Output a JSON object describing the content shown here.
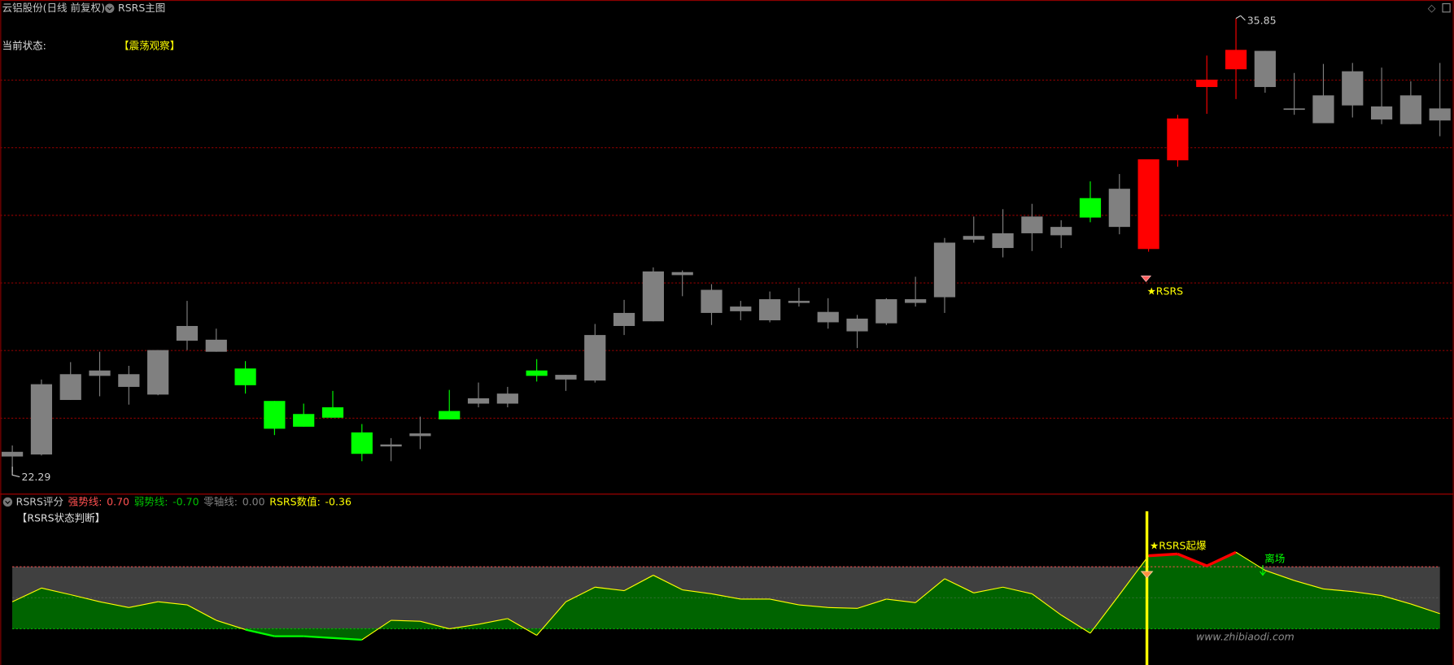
{
  "chart_data": [
    {
      "type": "candlestick",
      "title": "云铝股份(日线 前复权)",
      "subtitle": "RSRS主图",
      "status_label": "当前状态:",
      "status": "【震荡观察】",
      "annotations": [
        "★RSRS"
      ],
      "open": [
        22.76,
        22.82,
        24.45,
        25.17,
        24.84,
        24.61,
        26.22,
        25.89,
        25.39,
        24.42,
        24.03,
        24.23,
        23.48,
        23.06,
        23.37,
        24.12,
        24.34,
        24.34,
        25.33,
        25.06,
        25.03,
        26.66,
        26.8,
        28.18,
        27.05,
        27.1,
        26.83,
        27.35,
        26.77,
        26.5,
        26.74,
        27.35,
        27.52,
        29.24,
        28.99,
        29.43,
        29.37,
        30.48,
        29.62,
        28.96,
        31.61,
        33.8,
        34.33,
        33.8,
        33.14,
        32.72,
        33.25,
        32.83,
        32.69,
        32.8
      ],
      "high": [
        23.09,
        25.06,
        25.58,
        25.89,
        25.47,
        25.94,
        27.41,
        26.58,
        25.61,
        24.42,
        24.34,
        24.72,
        23.73,
        23.31,
        23.95,
        24.75,
        24.97,
        24.84,
        25.67,
        25.2,
        26.72,
        27.44,
        28.41,
        28.32,
        27.91,
        27.41,
        27.69,
        27.8,
        27.49,
        26.99,
        27.49,
        28.13,
        29.29,
        29.93,
        30.15,
        30.31,
        29.82,
        30.98,
        31.2,
        31.64,
        32.97,
        34.74,
        35.85,
        34.88,
        34.22,
        34.49,
        34.52,
        34.38,
        33.97,
        34.52
      ],
      "low": [
        22.29,
        22.79,
        24.45,
        24.56,
        24.31,
        24.59,
        25.94,
        25.89,
        24.64,
        23.4,
        23.65,
        23.92,
        22.62,
        22.62,
        22.98,
        23.87,
        24.23,
        24.23,
        25.0,
        24.72,
        24.97,
        26.39,
        26.8,
        27.55,
        26.69,
        26.83,
        26.77,
        27.24,
        26.58,
        26.0,
        26.69,
        27.24,
        27.05,
        29.15,
        28.71,
        28.9,
        28.99,
        29.76,
        29.4,
        28.88,
        31.42,
        33.0,
        33.44,
        33.63,
        32.97,
        32.72,
        32.89,
        32.69,
        32.69,
        32.33
      ],
      "close": [
        22.9,
        24.92,
        25.22,
        25.33,
        25.22,
        25.94,
        26.66,
        26.25,
        24.89,
        23.59,
        23.65,
        23.92,
        22.84,
        23.12,
        23.45,
        23.87,
        24.5,
        24.64,
        25.17,
        25.2,
        26.39,
        27.05,
        28.29,
        28.27,
        27.74,
        27.24,
        27.46,
        27.41,
        27.08,
        26.88,
        27.46,
        27.46,
        29.15,
        29.35,
        29.43,
        29.93,
        29.62,
        29.9,
        30.76,
        31.64,
        32.86,
        34.02,
        34.91,
        34.88,
        33.16,
        33.55,
        34.27,
        33.22,
        33.55,
        33.16
      ],
      "colors": [
        "#808080",
        "#808080",
        "#808080",
        "#808080",
        "#808080",
        "#808080",
        "#808080",
        "#808080",
        "#00ff00",
        "#00ff00",
        "#00ff00",
        "#00ff00",
        "#00ff00",
        "#808080",
        "#808080",
        "#00ff00",
        "#808080",
        "#808080",
        "#00ff00",
        "#808080",
        "#808080",
        "#808080",
        "#808080",
        "#808080",
        "#808080",
        "#808080",
        "#808080",
        "#808080",
        "#808080",
        "#808080",
        "#808080",
        "#808080",
        "#808080",
        "#808080",
        "#808080",
        "#808080",
        "#808080",
        "#00ff00",
        "#808080",
        "#ff0000",
        "#ff0000",
        "#ff0000",
        "#ff0000",
        "#808080",
        "#808080",
        "#808080",
        "#808080",
        "#808080",
        "#808080",
        "#808080"
      ],
      "ylim": [
        21.65,
        36.4
      ],
      "ygrid": [
        34.02,
        32.0,
        29.98,
        27.96,
        25.94,
        23.92
      ],
      "grid_color": "#8b0000"
    },
    {
      "type": "area",
      "title": "RSRS评分",
      "levels": [
        {
          "name": "强势线:",
          "value": 0.7,
          "label": "0.70",
          "color": "#ff5050"
        },
        {
          "name": "弱势线:",
          "value": -0.7,
          "label": "-0.70",
          "color": "#00c000"
        },
        {
          "name": "零轴线:",
          "value": 0,
          "label": "0.00",
          "color": "#808080"
        }
      ],
      "current_label": "RSRS数值:",
      "current_color": "#ffff00",
      "subtitle": "【RSRS状态判断】",
      "annotations": [
        "★RSRS起爆",
        "离场"
      ],
      "values": [
        -0.09,
        0.22,
        0.07,
        -0.09,
        -0.22,
        -0.09,
        -0.16,
        -0.51,
        -0.72,
        -0.87,
        -0.87,
        -0.91,
        -0.95,
        -0.51,
        -0.53,
        -0.7,
        -0.6,
        -0.47,
        -0.85,
        -0.09,
        0.24,
        0.16,
        0.51,
        0.18,
        0.09,
        -0.03,
        -0.03,
        -0.16,
        -0.22,
        -0.24,
        -0.03,
        -0.11,
        0.43,
        0.11,
        0.24,
        0.09,
        -0.39,
        -0.8,
        0.07,
        0.95,
        0.99,
        0.72,
        1.03,
        0.62,
        0.39,
        0.2,
        0.14,
        0.05,
        -0.14,
        -0.36
      ],
      "line_color": "#ffff00",
      "strong_color": "#ff0000",
      "weak_color": "#00ff00",
      "fill": "#006400",
      "band_color": "#404040",
      "ylim": [
        -1.52,
        2.04
      ]
    }
  ],
  "watermark": "www.zhibiaodi.com"
}
